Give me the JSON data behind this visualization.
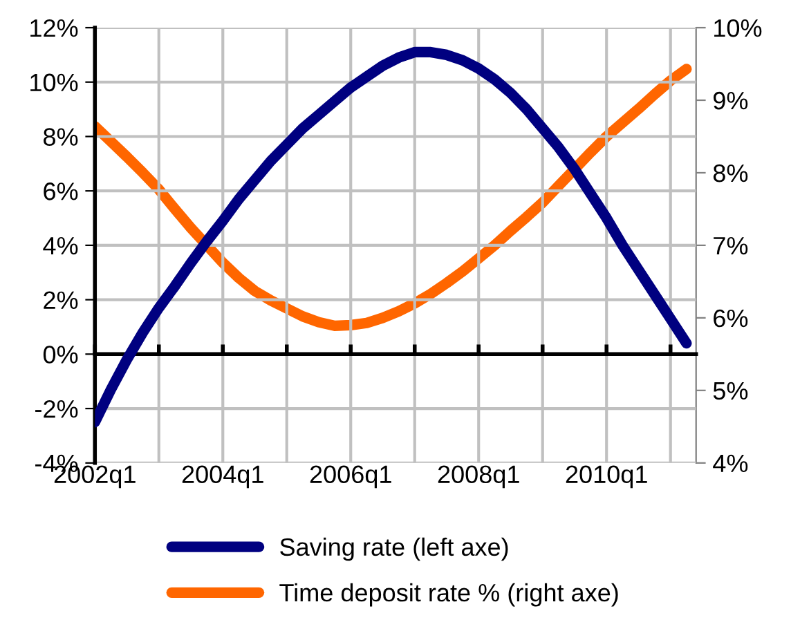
{
  "chart_data": {
    "type": "line",
    "categories": [
      "2002q1",
      null,
      null,
      null,
      null,
      null,
      null,
      null,
      "2004q1",
      null,
      null,
      null,
      null,
      null,
      null,
      null,
      "2006q1",
      null,
      null,
      null,
      null,
      null,
      null,
      null,
      "2008q1",
      null,
      null,
      null,
      null,
      null,
      null,
      null,
      "2010q1",
      null,
      null,
      null,
      null,
      null
    ],
    "series": [
      {
        "name": "Saving rate (left axe)",
        "color": "#000080",
        "values": [
          -2.5,
          -1.3,
          -0.2,
          0.8,
          1.7,
          2.5,
          3.35,
          4.15,
          4.9,
          5.7,
          6.4,
          7.1,
          7.7,
          8.3,
          8.8,
          9.3,
          9.8,
          10.2,
          10.6,
          10.9,
          11.1,
          11.1,
          11.0,
          10.8,
          10.5,
          10.1,
          9.6,
          9.0,
          8.3,
          7.6,
          6.8,
          5.9,
          5.0,
          4.0,
          3.1,
          2.2,
          1.3,
          0.4
        ]
      },
      {
        "name": "Time deposit rate % (right axe)",
        "color": "#ff6600",
        "axis": "y2",
        "values": [
          8.64,
          8.43,
          8.22,
          8.0,
          7.77,
          7.5,
          7.24,
          7.0,
          6.76,
          6.55,
          6.37,
          6.24,
          6.13,
          6.02,
          5.94,
          5.89,
          5.9,
          5.93,
          6.0,
          6.09,
          6.2,
          6.33,
          6.48,
          6.64,
          6.82,
          7.0,
          7.2,
          7.39,
          7.59,
          7.82,
          8.05,
          8.28,
          8.5,
          8.69,
          8.88,
          9.08,
          9.27,
          9.43
        ]
      }
    ],
    "ylim": [
      -4,
      12
    ],
    "yticks": [
      {
        "value": -4,
        "label": "-4%"
      },
      {
        "value": -2,
        "label": "-2%"
      },
      {
        "value": 0,
        "label": "0%"
      },
      {
        "value": 2,
        "label": "2%"
      },
      {
        "value": 4,
        "label": "4%"
      },
      {
        "value": 6,
        "label": "6%"
      },
      {
        "value": 8,
        "label": "8%"
      },
      {
        "value": 10,
        "label": "10%"
      },
      {
        "value": 12,
        "label": "12%"
      }
    ],
    "y2lim": [
      4,
      10
    ],
    "y2ticks": [
      {
        "value": 4,
        "label": "4%"
      },
      {
        "value": 5,
        "label": "5%"
      },
      {
        "value": 6,
        "label": "6%"
      },
      {
        "value": 7,
        "label": "7%"
      },
      {
        "value": 8,
        "label": "8%"
      },
      {
        "value": 9,
        "label": "9%"
      },
      {
        "value": 10,
        "label": "10%"
      }
    ],
    "grid": true,
    "legend": "bottom",
    "marker": "none",
    "line_style": "solid"
  }
}
